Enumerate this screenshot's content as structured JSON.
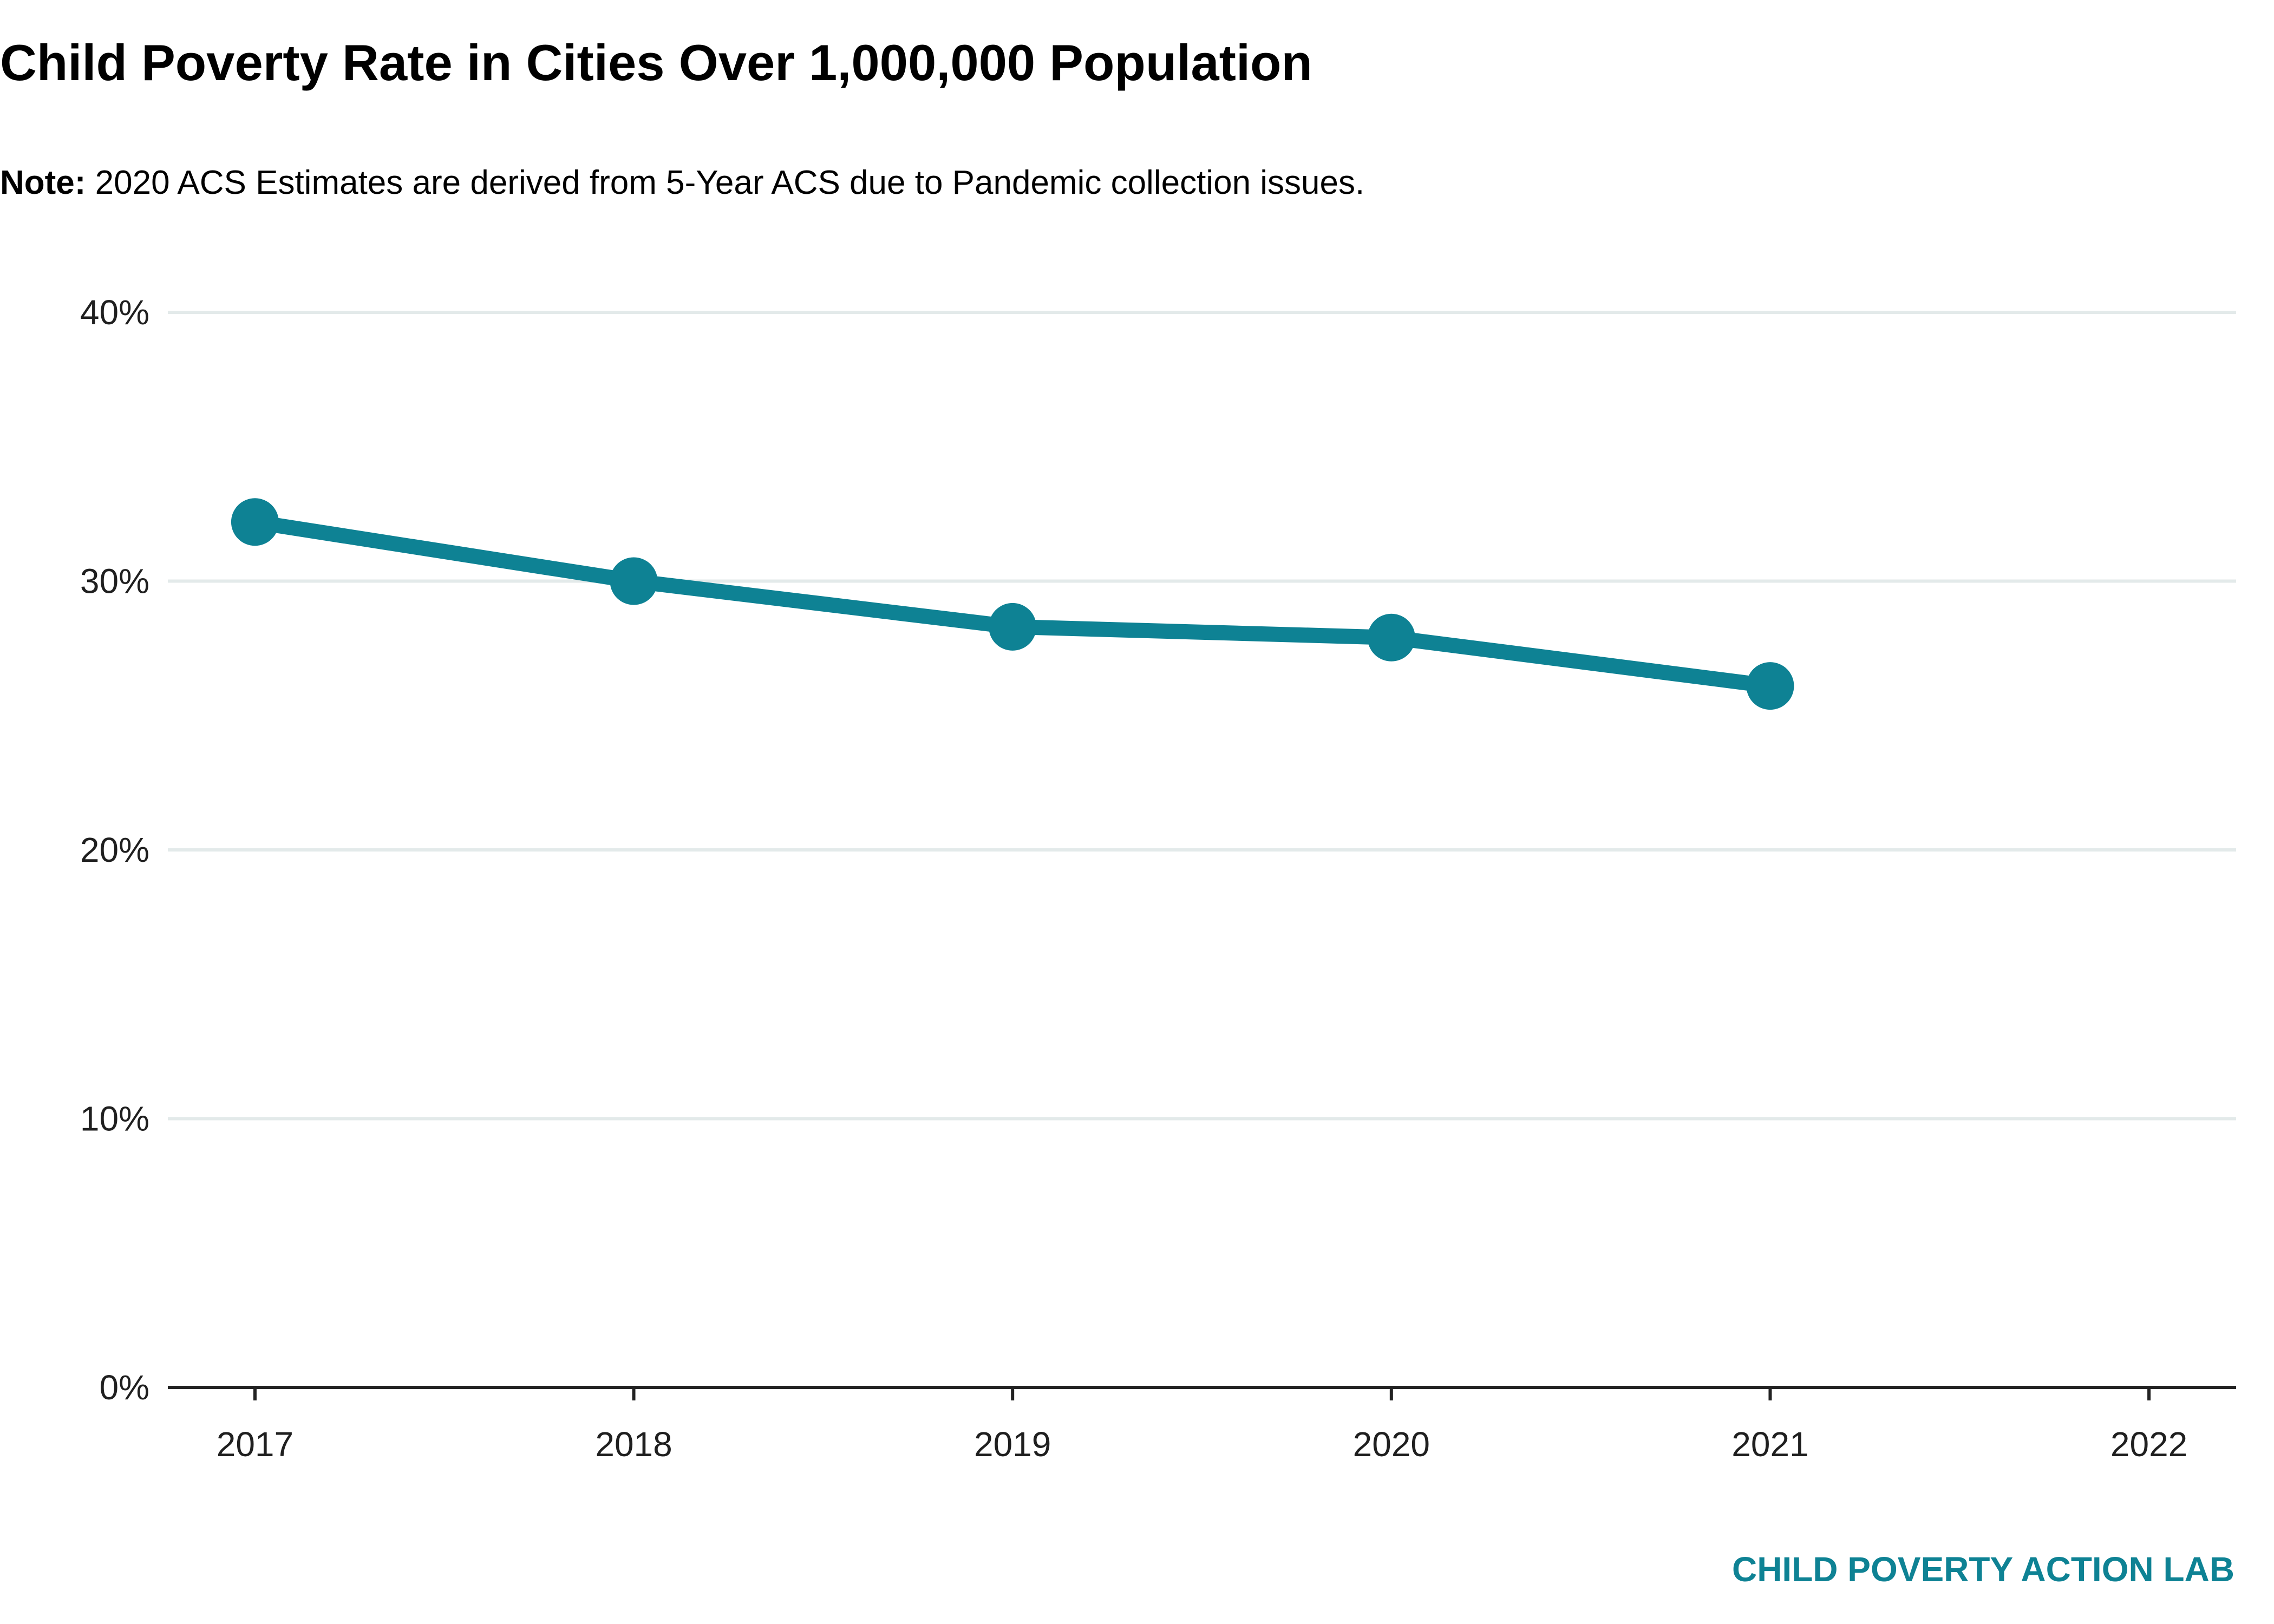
{
  "chart_data": {
    "type": "line",
    "title": "Child Poverty Rate in Cities Over 1,000,000 Population",
    "note_label": "Note:",
    "note_text": " 2020 ACS Estimates are derived from 5-Year ACS due to Pandemic collection issues.",
    "source": "CHILD POVERTY ACTION LAB",
    "x": [
      2017,
      2018,
      2019,
      2020,
      2021
    ],
    "x_ticks": [
      "2017",
      "2018",
      "2019",
      "2020",
      "2021",
      "2022"
    ],
    "xlim": [
      2016.77,
      2022.23
    ],
    "y_ticks": [
      "0%",
      "10%",
      "20%",
      "30%",
      "40%"
    ],
    "ylim": [
      0,
      40
    ],
    "grid": true,
    "series": [
      {
        "values": [
          32.2,
          30.0,
          28.3,
          27.9,
          26.1
        ],
        "color": "#0E8294"
      }
    ]
  }
}
